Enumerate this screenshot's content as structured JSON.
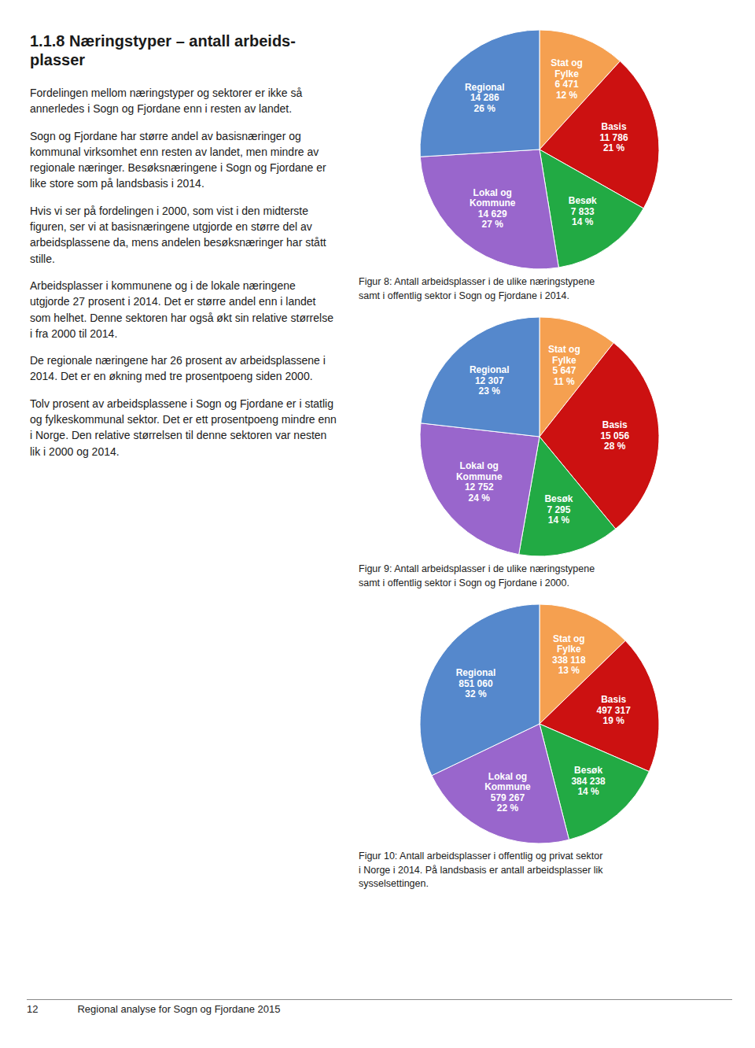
{
  "title": "1.1.8 Næringstyper – antall arbeids-\nplasser",
  "annotations": [
    "Fordelingen mellom næringstyper og sektorer er ikke så annerledes i Sogn og Fjordane enn i resten av landet.",
    "Sogn og Fjordane har større andel av basisnæringer og kommunal virksomhet enn resten av landet, men mindre av regionale næringer. Besøksnæringene i Sogn og Fjordane er like store som på landsbasis i 2014.",
    "Hvis vi ser på fordelingen i 2000, som vist i den midterste figuren, ser vi at basisnæringene utgjorde en større del av arbeidsplassene da, mens andelen besøksnæringer har stått stille.",
    "Arbeidsplasser i kommunene og i de lokale næringene utgjorde 27 prosent i 2014. Det er større andel enn i landet som helhet. Denne sektoren har også økt sin relative størrelse i fra 2000 til 2014.",
    "De regionale næringene har 26 prosent av arbeidsplassene i 2014. Det er en økning med tre prosentpoeng siden 2000.",
    "Tolv prosent av arbeidsplassene i Sogn og Fjordane er i statlig og fylkeskommunal sektor. Det er ett prosentpoeng mindre enn i Norge. Den relative størrelsen til denne sektoren var nesten lik i 2000 og 2014.",
    "12",
    "Regional analyse for Sogn og Fjordane 2015"
  ],
  "chart_data": [
    {
      "type": "pie",
      "title": "Figur 8: Antall arbeidsplasser i de ulike næringstypene\nsamt i offentlig sektor i Sogn og Fjordane i 2014.",
      "categories": [
        "Stat og\nFylke",
        "Basis",
        "Besøk",
        "Lokal og\nKommune",
        "Regional"
      ],
      "values": [
        6471,
        11786,
        7833,
        14629,
        14286
      ],
      "value_labels": [
        "6 471",
        "11 786",
        "7 833",
        "14 629",
        "14 286"
      ],
      "shares": [
        12,
        21,
        14,
        27,
        26
      ],
      "share_labels": [
        "12 %",
        "21 %",
        "14 %",
        "27 %",
        "26 %"
      ],
      "colors": [
        "#F5A050",
        "#CC1111",
        "#22AA44",
        "#9966CC",
        "#5588CC"
      ],
      "data_labels": true
    },
    {
      "type": "pie",
      "title": "Figur 9: Antall arbeidsplasser i de ulike næringstypene\nsamt i offentlig sektor i Sogn og Fjordane i 2000.",
      "categories": [
        "Stat og\nFylke",
        "Basis",
        "Besøk",
        "Lokal og\nKommune",
        "Regional"
      ],
      "values": [
        5647,
        15056,
        7295,
        12752,
        12307
      ],
      "value_labels": [
        "5 647",
        "15 056",
        "7 295",
        "12 752",
        "12 307"
      ],
      "shares": [
        11,
        28,
        14,
        24,
        23
      ],
      "share_labels": [
        "11 %",
        "28 %",
        "14 %",
        "24 %",
        "23 %"
      ],
      "colors": [
        "#F5A050",
        "#CC1111",
        "#22AA44",
        "#9966CC",
        "#5588CC"
      ],
      "data_labels": true
    },
    {
      "type": "pie",
      "title": "Figur 10: Antall arbeidsplasser i offentlig og privat sektor\ni Norge i 2014. På landsbasis er antall arbeidsplasser lik\nsysselsettingen.",
      "categories": [
        "Stat og\nFylke",
        "Basis",
        "Besøk",
        "Lokal og\nKommune",
        "Regional"
      ],
      "values": [
        338118,
        497317,
        384238,
        579267,
        851060
      ],
      "value_labels": [
        "338 118",
        "497 317",
        "384 238",
        "579 267",
        "851 060"
      ],
      "shares": [
        13,
        19,
        14,
        22,
        32
      ],
      "share_labels": [
        "13 %",
        "19 %",
        "14 %",
        "22 %",
        "32 %"
      ],
      "colors": [
        "#F5A050",
        "#CC1111",
        "#22AA44",
        "#9966CC",
        "#5588CC"
      ],
      "data_labels": true
    }
  ]
}
